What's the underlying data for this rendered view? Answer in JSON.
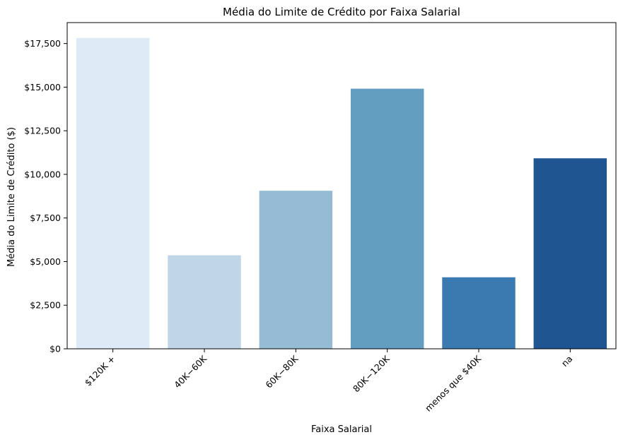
{
  "chart_data": {
    "type": "bar",
    "title": "Média do Limite de Crédito por Faixa Salarial",
    "xlabel": "Faixa Salarial",
    "ylabel": "Média do Limite de Crédito ($)",
    "categories": [
      "$120K +",
      "$40K - $60K",
      "$60K - $80K",
      "$80K - $120K",
      "menos que $40K",
      "na"
    ],
    "category_display": [
      "$120K +",
      "40K−60K",
      "60K−80K",
      "80K−120K",
      "menos que $40K",
      "na"
    ],
    "values": [
      17820,
      5360,
      9060,
      14910,
      4100,
      10920
    ],
    "colors": [
      "#deebf7",
      "#c0d6e8",
      "#95bcd4",
      "#639dc0",
      "#3b7ab0",
      "#1f5591"
    ],
    "ylim": [
      0,
      18700
    ],
    "yticks": [
      0,
      2500,
      5000,
      7500,
      10000,
      12500,
      15000,
      17500
    ],
    "ytick_labels": [
      "$0",
      "$2,500",
      "$5,000",
      "$7,500",
      "$10,000",
      "$12,500",
      "$15,000",
      "$17,500"
    ],
    "grid": false,
    "legend": "none"
  }
}
